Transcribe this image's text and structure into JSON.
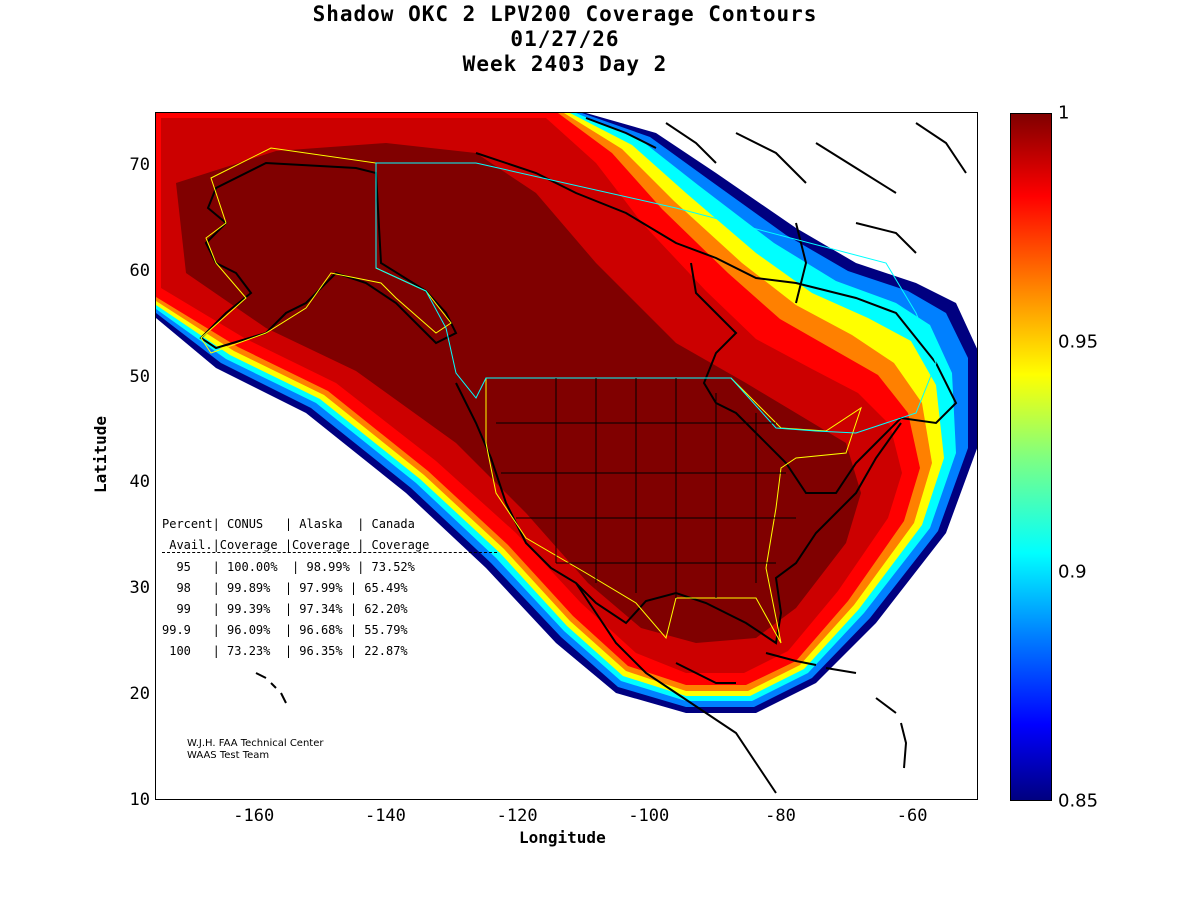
{
  "title": {
    "line1": "Shadow OKC 2 LPV200 Coverage Contours",
    "line2": "01/27/26",
    "line3": "Week 2403 Day 2"
  },
  "axes": {
    "xlabel": "Longitude",
    "ylabel": "Latitude",
    "xticks": [
      "-160",
      "-140",
      "-120",
      "-100",
      "-80",
      "-60"
    ],
    "yticks": [
      "70",
      "60",
      "50",
      "40",
      "30",
      "20",
      "10"
    ]
  },
  "colorbar": {
    "ticks": [
      "1",
      "0.95",
      "0.9",
      "0.85"
    ],
    "colors": [
      "#800000",
      "#ff0000",
      "#ff8000",
      "#ffff00",
      "#00ffff",
      "#0080ff",
      "#0000ff",
      "#000080"
    ]
  },
  "stats_table": {
    "header1": "Percent| CONUS   | Alaska  | Canada",
    "header2": " Avail.|Coverage |Coverage | Coverage",
    "rows": [
      "  95   | 100.00%  | 98.99% | 73.52%",
      "  98   | 99.89%  | 97.99% | 65.49%",
      "  99   | 99.39%  | 97.34% | 62.20%",
      "99.9   | 96.09%  | 96.68% | 55.79%",
      " 100   | 73.23%  | 96.35% | 22.87%"
    ]
  },
  "credits": {
    "line1": "W.J.H. FAA Technical Center",
    "line2": "WAAS Test Team"
  },
  "chart_data": {
    "type": "heatmap",
    "title": "Shadow OKC 2 LPV200 Coverage Contours",
    "xlabel": "Longitude",
    "ylabel": "Latitude",
    "xlim": [
      -175,
      -50
    ],
    "ylim": [
      10,
      75
    ],
    "colorbar_range": [
      0.85,
      1
    ],
    "regions": [
      {
        "name": "CONUS",
        "coverage_95": "100.00%",
        "coverage_98": "99.89%",
        "coverage_99": "99.39%",
        "coverage_99_9": "96.09%",
        "coverage_100": "73.23%"
      },
      {
        "name": "Alaska",
        "coverage_95": "98.99%",
        "coverage_98": "97.99%",
        "coverage_99": "97.34%",
        "coverage_99_9": "96.68%",
        "coverage_100": "96.35%"
      },
      {
        "name": "Canada",
        "coverage_95": "73.52%",
        "coverage_98": "65.49%",
        "coverage_99": "62.20%",
        "coverage_99_9": "55.79%",
        "coverage_100": "22.87%"
      }
    ]
  }
}
